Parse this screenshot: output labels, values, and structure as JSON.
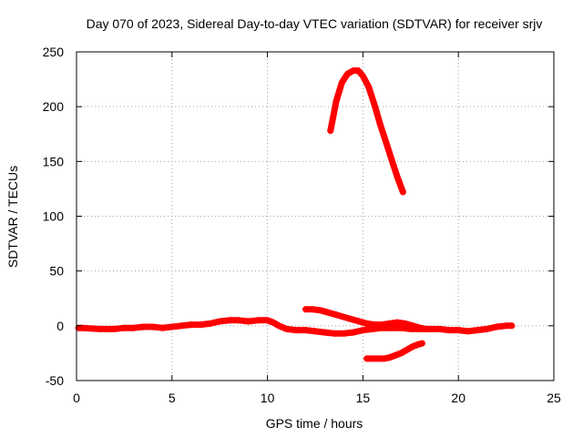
{
  "chart_data": {
    "type": "scatter",
    "title": "Day 070 of 2023, Sidereal Day-to-day VTEC variation (SDTVAR) for receiver srjv",
    "xlabel": "GPS time / hours",
    "ylabel": "SDTVAR / TECUs",
    "xlim": [
      0,
      25
    ],
    "ylim": [
      -50,
      250
    ],
    "xticks": [
      0,
      5,
      10,
      15,
      20,
      25
    ],
    "yticks": [
      -50,
      0,
      50,
      100,
      150,
      200,
      250
    ],
    "grid": true,
    "marker": "plus",
    "color": "#ff0000",
    "series": [
      {
        "x": [
          13.3,
          13.6,
          13.9,
          14.2,
          14.5,
          14.75,
          15.0,
          15.3,
          15.6,
          15.9,
          16.2,
          16.5,
          16.8,
          17.1
        ],
        "y": [
          178,
          205,
          222,
          230,
          233,
          233,
          228,
          218,
          202,
          184,
          168,
          152,
          136,
          122
        ]
      },
      {
        "x": [
          0.1,
          0.3,
          1.2,
          1.6,
          2.0,
          2.5,
          3.0,
          3.5,
          4.0,
          4.5,
          5.0,
          5.5,
          6.0,
          6.5,
          7.0,
          7.5,
          8.0,
          8.5,
          9.0,
          9.5,
          10.0,
          10.3,
          10.6,
          11.0,
          11.5,
          12.0,
          12.5,
          13.0,
          13.5,
          14.0,
          14.5,
          15.0,
          15.5,
          16.0,
          16.5,
          17.0,
          17.5,
          18.0,
          18.5,
          19.0,
          19.5,
          20.0,
          20.5,
          21.0,
          21.5,
          22.0,
          22.5,
          22.8
        ],
        "y": [
          -2,
          -2,
          -3,
          -3,
          -3,
          -2,
          -2,
          -1,
          -1,
          -2,
          -1,
          0,
          1,
          1,
          2,
          4,
          5,
          5,
          4,
          5,
          5,
          3,
          0,
          -3,
          -4,
          -4,
          -5,
          -6,
          -7,
          -7,
          -6,
          -4,
          -3,
          -2,
          -2,
          -2,
          -3,
          -3,
          -3,
          -3,
          -4,
          -4,
          -5,
          -4,
          -3,
          -1,
          0,
          0
        ]
      },
      {
        "x": [
          12.0,
          12.4,
          12.8,
          13.2,
          13.6,
          14.0,
          14.4,
          14.8,
          15.2,
          15.6,
          16.0,
          16.4,
          16.8,
          17.2,
          17.6,
          18.0,
          18.3
        ],
        "y": [
          15,
          15,
          14,
          12,
          10,
          8,
          6,
          4,
          2,
          1,
          1,
          2,
          3,
          2,
          0,
          -2,
          -3
        ]
      },
      {
        "x": [
          15.2,
          15.5,
          15.8,
          16.1,
          16.4,
          16.7,
          17.0,
          17.3,
          17.6,
          17.9,
          18.1
        ],
        "y": [
          -30,
          -30,
          -30,
          -30,
          -29,
          -27,
          -25,
          -22,
          -19,
          -17,
          -16
        ]
      }
    ]
  }
}
